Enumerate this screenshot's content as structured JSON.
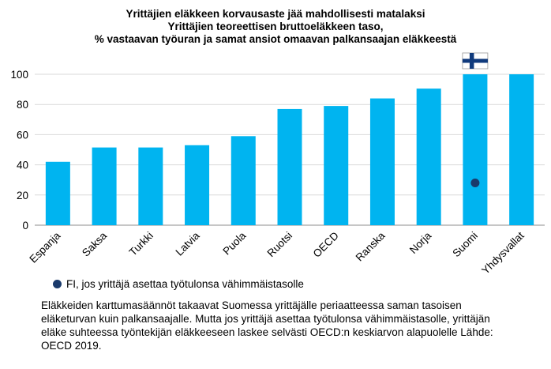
{
  "title_lines": [
    "Yrittäjien eläkkeen korvausaste jää mahdollisesti matalaksi",
    "Yrittäjien teoreettisen bruttoeläkkeen taso,",
    "% vastaavan työuran ja samat ansiot omaavan palkansaajan eläkkeestä"
  ],
  "chart_data": {
    "type": "bar",
    "categories": [
      "Espanja",
      "Saksa",
      "Turkki",
      "Latvia",
      "Puola",
      "Ruotsi",
      "OECD",
      "Ranska",
      "Norja",
      "Suomi",
      "Yhdysvallat"
    ],
    "values": [
      42,
      51.5,
      51.5,
      53,
      59,
      77,
      79,
      84,
      90.5,
      100,
      100
    ],
    "ylim": [
      0,
      100
    ],
    "yticks": [
      0,
      20,
      40,
      60,
      80,
      100
    ],
    "grid": true,
    "bar_color": "#00b4f0",
    "markers": [
      {
        "category": "Suomi",
        "value": 28,
        "color": "#1a3a6b",
        "label": "FI, jos yrittäjä asettaa työtulonsa vähimmäistasolle"
      }
    ],
    "flag": {
      "category": "Suomi",
      "icon": "finland-flag-icon"
    }
  },
  "legend": {
    "label": "FI, jos yrittäjä asettaa työtulonsa vähimmäistasolle"
  },
  "note": "Eläkkeiden karttumasäännöt takaavat Suomessa yrittäjälle periaatteessa saman tasoisen eläketurvan kuin palkansaajalle. Mutta jos yrittäjä asettaa työtulonsa vähimmäistasolle, yrittäjän eläke suhteessa työntekijän eläkkeeseen laskee selvästi OECD:n keskiarvon alapuolelle Lähde: OECD 2019."
}
